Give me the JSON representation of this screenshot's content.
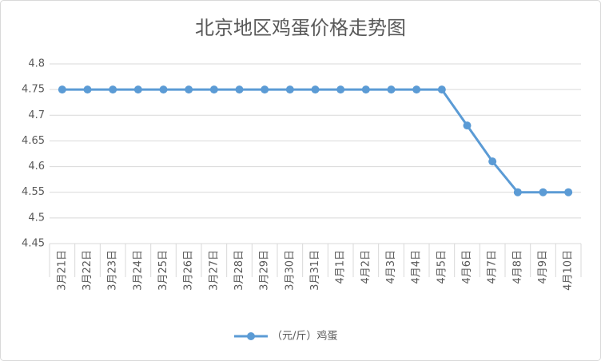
{
  "chart_data": {
    "type": "line",
    "title": "北京地区鸡蛋价格走势图",
    "categories": [
      "3月21日",
      "3月22日",
      "3月23日",
      "3月24日",
      "3月25日",
      "3月26日",
      "3月27日",
      "3月28日",
      "3月29日",
      "3月30日",
      "3月31日",
      "4月1日",
      "4月2日",
      "4月3日",
      "4月4日",
      "4月5日",
      "4月6日",
      "4月7日",
      "4月8日",
      "4月9日",
      "4月10日"
    ],
    "series": [
      {
        "name": "（元/斤）鸡蛋",
        "color": "#5b9bd5",
        "values": [
          4.75,
          4.75,
          4.75,
          4.75,
          4.75,
          4.75,
          4.75,
          4.75,
          4.75,
          4.75,
          4.75,
          4.75,
          4.75,
          4.75,
          4.75,
          4.75,
          4.68,
          4.61,
          4.55,
          4.55,
          4.55
        ]
      }
    ],
    "ylim": [
      4.45,
      4.8
    ],
    "yticks": [
      4.45,
      4.5,
      4.55,
      4.6,
      4.65,
      4.7,
      4.75,
      4.8
    ],
    "grid": true,
    "legend": "bottom"
  }
}
